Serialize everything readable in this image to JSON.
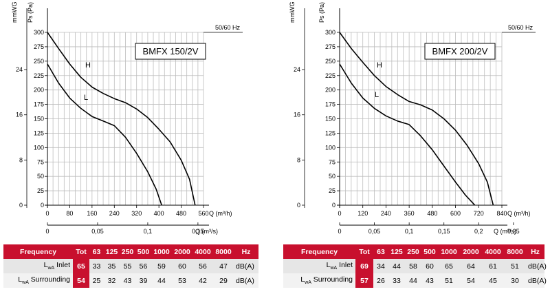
{
  "chart_data": [
    {
      "type": "line",
      "model": "BMFX 150/2V",
      "frequency_note": "50/60 Hz",
      "ylabel_pa": "Ps (Pa)",
      "ylabel_mmwg": "mmWG",
      "xlabel_m3h": "Q (m³/h)",
      "xlabel_m3s": "Q (m³/s)",
      "ylim": [
        0,
        300
      ],
      "xlim": [
        0,
        560
      ],
      "y_ticks": [
        "0",
        "25",
        "50",
        "75",
        "100",
        "125",
        "150",
        "175",
        "200",
        "225",
        "250",
        "275",
        "300"
      ],
      "mmwg_ticks": [
        {
          "value": 0,
          "label": "0"
        },
        {
          "value": 8,
          "label": "8"
        },
        {
          "value": 16,
          "label": "16"
        },
        {
          "value": 24,
          "label": "24"
        }
      ],
      "x_ticks": [
        "0",
        "80",
        "160",
        "240",
        "320",
        "400",
        "480",
        "560"
      ],
      "x2_ticks": [
        {
          "value": 0,
          "label": "0"
        },
        {
          "value": 0.05,
          "label": "0,05"
        },
        {
          "value": 0.1,
          "label": "0,1"
        },
        {
          "value": 0.15,
          "label": "0,15"
        }
      ],
      "series": [
        {
          "name": "H",
          "x": [
            0,
            40,
            80,
            120,
            160,
            200,
            240,
            280,
            320,
            360,
            400,
            440,
            480,
            510,
            530
          ],
          "y": [
            300,
            272,
            245,
            222,
            205,
            194,
            185,
            178,
            167,
            152,
            132,
            110,
            78,
            45,
            0
          ]
        },
        {
          "name": "L",
          "x": [
            0,
            40,
            80,
            120,
            160,
            200,
            240,
            280,
            320,
            360,
            390,
            410
          ],
          "y": [
            245,
            212,
            186,
            168,
            154,
            146,
            138,
            118,
            90,
            58,
            28,
            0
          ]
        }
      ]
    },
    {
      "type": "line",
      "model": "BMFX 200/2V",
      "frequency_note": "50/60 Hz",
      "ylabel_pa": "Ps (Pa)",
      "ylabel_mmwg": "mmWG",
      "xlabel_m3h": "Q (m³/h)",
      "xlabel_m3s": "Q (m³/s)",
      "ylim": [
        0,
        300
      ],
      "xlim": [
        0,
        840
      ],
      "y_ticks": [
        "0",
        "25",
        "50",
        "75",
        "100",
        "125",
        "150",
        "175",
        "200",
        "225",
        "250",
        "275",
        "300"
      ],
      "mmwg_ticks": [
        {
          "value": 0,
          "label": "0"
        },
        {
          "value": 8,
          "label": "8"
        },
        {
          "value": 16,
          "label": "16"
        },
        {
          "value": 24,
          "label": "24"
        }
      ],
      "x_ticks": [
        "0",
        "120",
        "240",
        "360",
        "480",
        "600",
        "720",
        "840"
      ],
      "x2_ticks": [
        {
          "value": 0,
          "label": "0"
        },
        {
          "value": 0.05,
          "label": "0,05"
        },
        {
          "value": 0.1,
          "label": "0,1"
        },
        {
          "value": 0.15,
          "label": "0,15"
        },
        {
          "value": 0.2,
          "label": "0,2"
        },
        {
          "value": 0.25,
          "label": "0,25"
        }
      ],
      "series": [
        {
          "name": "H",
          "x": [
            0,
            60,
            120,
            180,
            240,
            300,
            360,
            420,
            480,
            540,
            600,
            660,
            720,
            765,
            795
          ],
          "y": [
            300,
            272,
            248,
            225,
            206,
            192,
            180,
            174,
            165,
            150,
            130,
            104,
            72,
            40,
            0
          ]
        },
        {
          "name": "L",
          "x": [
            0,
            60,
            120,
            180,
            240,
            300,
            360,
            420,
            480,
            540,
            600,
            650,
            700
          ],
          "y": [
            245,
            212,
            186,
            168,
            155,
            146,
            140,
            120,
            96,
            68,
            40,
            18,
            0
          ]
        }
      ]
    }
  ],
  "tables": [
    {
      "header": {
        "title": "Frequency",
        "tot": "Tot",
        "bands": [
          "63",
          "125",
          "250",
          "500",
          "1000",
          "2000",
          "4000",
          "8000"
        ],
        "unit": "Hz"
      },
      "rows": [
        {
          "label_prefix": "L",
          "label_sub": "wA",
          "label_suffix": " Inlet",
          "tot": "65",
          "values": [
            "33",
            "35",
            "55",
            "56",
            "59",
            "60",
            "56",
            "47"
          ],
          "unit": "dB(A)"
        },
        {
          "label_prefix": "L",
          "label_sub": "wA",
          "label_suffix": " Surrounding",
          "tot": "54",
          "values": [
            "25",
            "32",
            "43",
            "39",
            "44",
            "53",
            "42",
            "29"
          ],
          "unit": "dB(A)"
        }
      ]
    },
    {
      "header": {
        "title": "Frequency",
        "tot": "Tot",
        "bands": [
          "63",
          "125",
          "250",
          "500",
          "1000",
          "2000",
          "4000",
          "8000"
        ],
        "unit": "Hz"
      },
      "rows": [
        {
          "label_prefix": "L",
          "label_sub": "wA",
          "label_suffix": " Inlet",
          "tot": "69",
          "values": [
            "34",
            "44",
            "58",
            "60",
            "65",
            "64",
            "61",
            "51"
          ],
          "unit": "dB(A)"
        },
        {
          "label_prefix": "L",
          "label_sub": "wA",
          "label_suffix": " Surrounding",
          "tot": "57",
          "values": [
            "26",
            "33",
            "44",
            "43",
            "51",
            "54",
            "45",
            "30"
          ],
          "unit": "dB(A)"
        }
      ]
    }
  ]
}
